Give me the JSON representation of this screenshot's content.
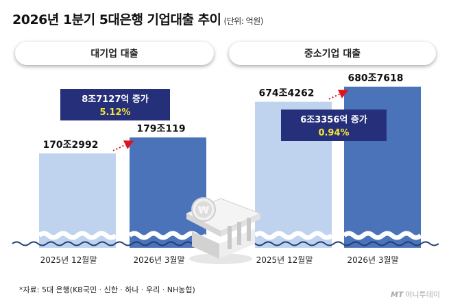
{
  "title": "2026년 1분기 5대은행 기업대출 추이",
  "unit": "(단위: 억원)",
  "chart_data": [
    {
      "type": "bar",
      "title": "대기업 대출",
      "categories": [
        "2025년 12월말",
        "2026년 3월말"
      ],
      "values": [
        1702992,
        1790119
      ],
      "value_labels": [
        "170조2992",
        "179조119"
      ],
      "change_label": "8조7127억 증가",
      "change_pct": "5.12%"
    },
    {
      "type": "bar",
      "title": "중소기업 대출",
      "categories": [
        "2025년 12월말",
        "2026년 3월말"
      ],
      "values": [
        6744262,
        6807618
      ],
      "value_labels": [
        "674조4262",
        "680조7618"
      ],
      "change_label": "6조3356억 증가",
      "change_pct": "0.94%"
    }
  ],
  "footnote": "*자료: 5대 은행(KB국민 · 신한 · 하나 · 우리 · NH농협)",
  "brand": {
    "mt": "MT",
    "name": "머니투데이"
  },
  "colors": {
    "bar_light": "#BFD3EF",
    "bar_dark": "#4A73BA",
    "wave": "#1F3E73",
    "callout_bg": "#26307A",
    "callout_pct": "#F3E33A",
    "arrow": "#E0141E"
  }
}
